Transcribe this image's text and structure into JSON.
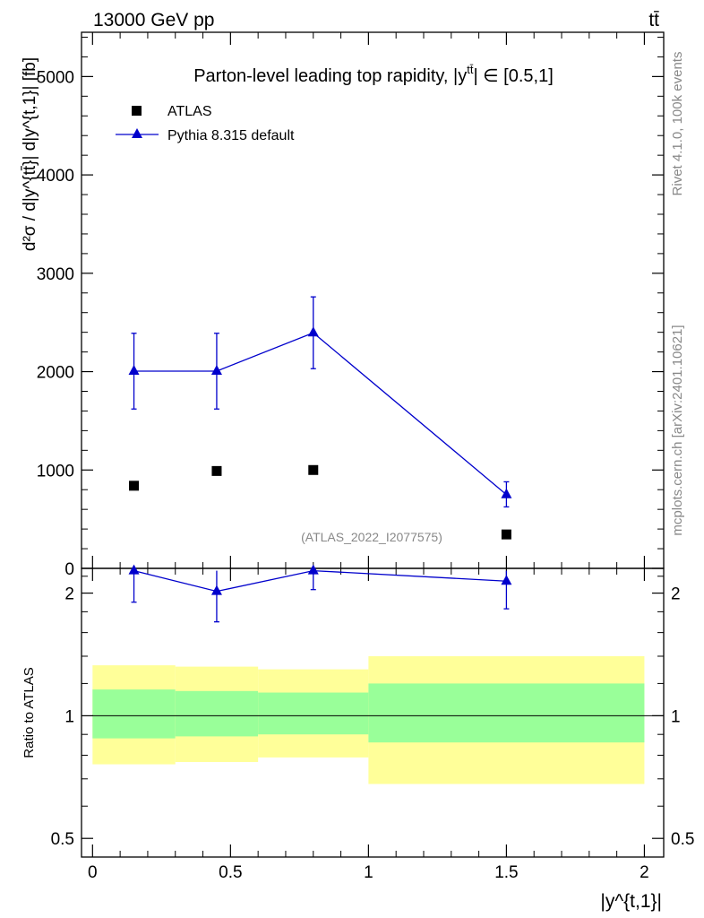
{
  "header": {
    "left": "13000 GeV pp",
    "right": "tt̄"
  },
  "side_labels": {
    "rivet": "Rivet 4.1.0,  100k events",
    "mcplots": "mcplots.cern.ch [arXiv:2401.10621]"
  },
  "chart_data": {
    "type": "scatter",
    "title": "Parton-level leading top rapidity, |y^{tt̄}| ∈ [0.5,1]",
    "title_main": "Parton-level leading top rapidity, |y",
    "title_sup": "tt̄",
    "title_tail": "| ∈ [0.5,1]",
    "watermark": "(ATLAS_2022_I2077575)",
    "ylabel_main": "d²σ / d|y^{tt̄}| d|y^{t,1}| [fb]",
    "ylabel_ratio": "Ratio to ATLAS",
    "xlabel": "|y^{t,1}|",
    "xlim": [
      -0.04,
      2.07
    ],
    "ylim_main": [
      0,
      5450
    ],
    "ylim_ratio": [
      0.45,
      2.3
    ],
    "x_ticks": [
      {
        "value": 0,
        "label": "0"
      },
      {
        "value": 0.5,
        "label": "0.5"
      },
      {
        "value": 1,
        "label": "1"
      },
      {
        "value": 1.5,
        "label": "1.5"
      },
      {
        "value": 2,
        "label": "2"
      }
    ],
    "y_ticks_main": [
      {
        "value": 0,
        "label": "0"
      },
      {
        "value": 1000,
        "label": "1000"
      },
      {
        "value": 2000,
        "label": "2000"
      },
      {
        "value": 3000,
        "label": "3000"
      },
      {
        "value": 4000,
        "label": "4000"
      },
      {
        "value": 5000,
        "label": "5000"
      }
    ],
    "y_ticks_ratio": [
      {
        "value": 0.5,
        "label": "0.5"
      },
      {
        "value": 1,
        "label": "1"
      },
      {
        "value": 2,
        "label": "2"
      }
    ],
    "legend": [
      {
        "name": "ATLAS",
        "marker": "square",
        "color": "#000000"
      },
      {
        "name": "Pythia 8.315 default",
        "marker": "triangle",
        "color": "#0000cc"
      }
    ],
    "series": [
      {
        "name": "ATLAS",
        "color": "#000000",
        "points": [
          {
            "x": 0.15,
            "y": 840,
            "xlo": 0.0,
            "xhi": 0.3
          },
          {
            "x": 0.45,
            "y": 990,
            "xlo": 0.3,
            "xhi": 0.6
          },
          {
            "x": 0.8,
            "y": 1000,
            "xlo": 0.6,
            "xhi": 1.0
          },
          {
            "x": 1.5,
            "y": 345,
            "xlo": 1.0,
            "xhi": 2.0
          }
        ]
      },
      {
        "name": "Pythia 8.315 default",
        "color": "#0000cc",
        "points": [
          {
            "x": 0.15,
            "y": 2005,
            "ylo": 1620,
            "yhi": 2390
          },
          {
            "x": 0.45,
            "y": 2005,
            "ylo": 1620,
            "yhi": 2390
          },
          {
            "x": 0.8,
            "y": 2395,
            "ylo": 2030,
            "yhi": 2760
          },
          {
            "x": 1.5,
            "y": 750,
            "ylo": 625,
            "yhi": 880
          }
        ]
      }
    ],
    "ratio": {
      "reference": 1,
      "bands": [
        {
          "xlo": 0.0,
          "xhi": 0.3,
          "green": [
            0.88,
            1.16
          ],
          "yellow": [
            0.76,
            1.33
          ]
        },
        {
          "xlo": 0.3,
          "xhi": 0.6,
          "green": [
            0.89,
            1.15
          ],
          "yellow": [
            0.77,
            1.32
          ]
        },
        {
          "xlo": 0.6,
          "xhi": 1.0,
          "green": [
            0.9,
            1.14
          ],
          "yellow": [
            0.79,
            1.3
          ]
        },
        {
          "xlo": 1.0,
          "xhi": 2.0,
          "green": [
            0.86,
            1.2
          ],
          "yellow": [
            0.68,
            1.4
          ]
        }
      ],
      "points": [
        {
          "x": 0.15,
          "y": 2.27,
          "ylo": 1.9,
          "yhi": 2.27
        },
        {
          "x": 0.45,
          "y": 2.02,
          "ylo": 1.7,
          "yhi": 2.27
        },
        {
          "x": 0.8,
          "y": 2.27,
          "ylo": 2.04,
          "yhi": 2.27
        },
        {
          "x": 1.5,
          "y": 2.14,
          "ylo": 1.83,
          "yhi": 2.27
        }
      ]
    }
  }
}
